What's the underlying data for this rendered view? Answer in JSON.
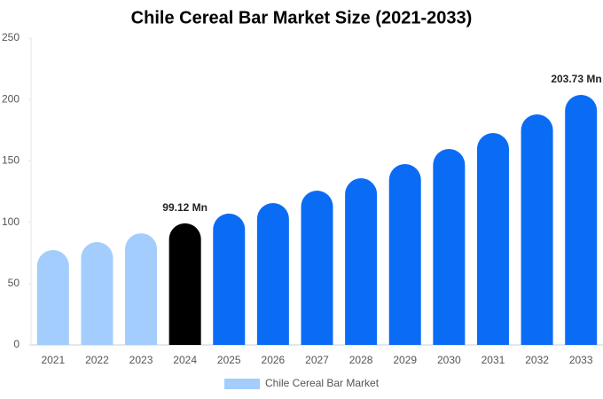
{
  "chart_data": {
    "type": "bar",
    "title": "Chile Cereal Bar Market Size (2021-2033)",
    "categories": [
      "2021",
      "2022",
      "2023",
      "2024",
      "2025",
      "2026",
      "2027",
      "2028",
      "2029",
      "2030",
      "2031",
      "2032",
      "2033"
    ],
    "series": [
      {
        "name": "Chile Cereal Bar Market",
        "color": "#a3cdfc",
        "values": [
          77.3,
          83.8,
          91,
          99.12,
          107,
          115.6,
          125.7,
          135.8,
          147.4,
          159.7,
          172.7,
          187.9,
          203.73
        ],
        "colors": [
          "#a3cdfc",
          "#a3cdfc",
          "#a3cdfc",
          "#000000",
          "#0a6cf5",
          "#0a6cf5",
          "#0a6cf5",
          "#0a6cf5",
          "#0a6cf5",
          "#0a6cf5",
          "#0a6cf5",
          "#0a6cf5",
          "#0a6cf5"
        ],
        "value_labels": [
          null,
          null,
          null,
          "99.12 Mn",
          null,
          null,
          null,
          null,
          null,
          null,
          null,
          null,
          "203.73 Mn"
        ]
      }
    ],
    "ylim": [
      0,
      250
    ],
    "yticks": [
      0,
      50,
      100,
      150,
      200,
      250
    ],
    "legend": "bottom"
  }
}
